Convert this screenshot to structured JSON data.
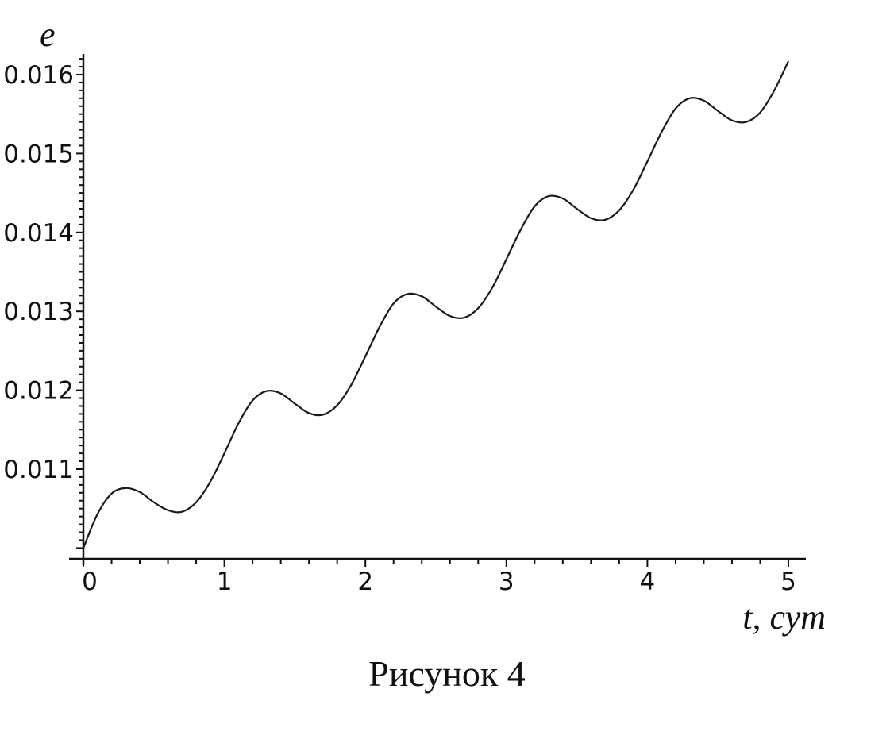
{
  "chart_data": {
    "type": "line",
    "title": "",
    "xlabel": "t, сут",
    "ylabel": "e",
    "caption": "Рисунок 4",
    "xlim": [
      0,
      5
    ],
    "ylim": [
      0.009885,
      0.01625
    ],
    "x_ticks": [
      "0",
      "1",
      "2",
      "3",
      "4",
      "5"
    ],
    "y_ticks": [
      "0.011",
      "0.012",
      "0.013",
      "0.014",
      "0.015",
      "0.016"
    ],
    "grid": false,
    "line_color": "#1a1a1a",
    "series": [
      {
        "x": [
          0,
          0.1,
          0.2,
          0.3,
          0.4,
          0.5,
          0.6,
          0.7,
          0.8,
          0.9,
          1.0,
          1.1,
          1.2,
          1.3,
          1.4,
          1.5,
          1.6,
          1.7,
          1.8,
          1.9,
          2.0,
          2.1,
          2.2,
          2.3,
          2.4,
          2.5,
          2.6,
          2.7,
          2.8,
          2.9,
          3.0,
          3.1,
          3.2,
          3.3,
          3.4,
          3.5,
          3.6,
          3.7,
          3.8,
          3.9,
          4.0,
          4.1,
          4.2,
          4.3,
          4.4,
          4.5,
          4.6,
          4.7,
          4.8,
          4.9,
          5.0
        ],
        "y": [
          0.01,
          0.01043,
          0.01069,
          0.01076,
          0.01071,
          0.01058,
          0.01048,
          0.01046,
          0.01058,
          0.01084,
          0.0112,
          0.01158,
          0.01187,
          0.01199,
          0.01196,
          0.01183,
          0.01171,
          0.01169,
          0.01181,
          0.01207,
          0.01243,
          0.0128,
          0.0131,
          0.01322,
          0.01319,
          0.01306,
          0.01294,
          0.01292,
          0.01304,
          0.0133,
          0.01366,
          0.01403,
          0.01433,
          0.01446,
          0.01443,
          0.0143,
          0.01418,
          0.01416,
          0.01428,
          0.01454,
          0.0149,
          0.01527,
          0.01557,
          0.0157,
          0.01567,
          0.01554,
          0.01542,
          0.0154,
          0.01552,
          0.0158,
          0.01617
        ]
      }
    ]
  }
}
